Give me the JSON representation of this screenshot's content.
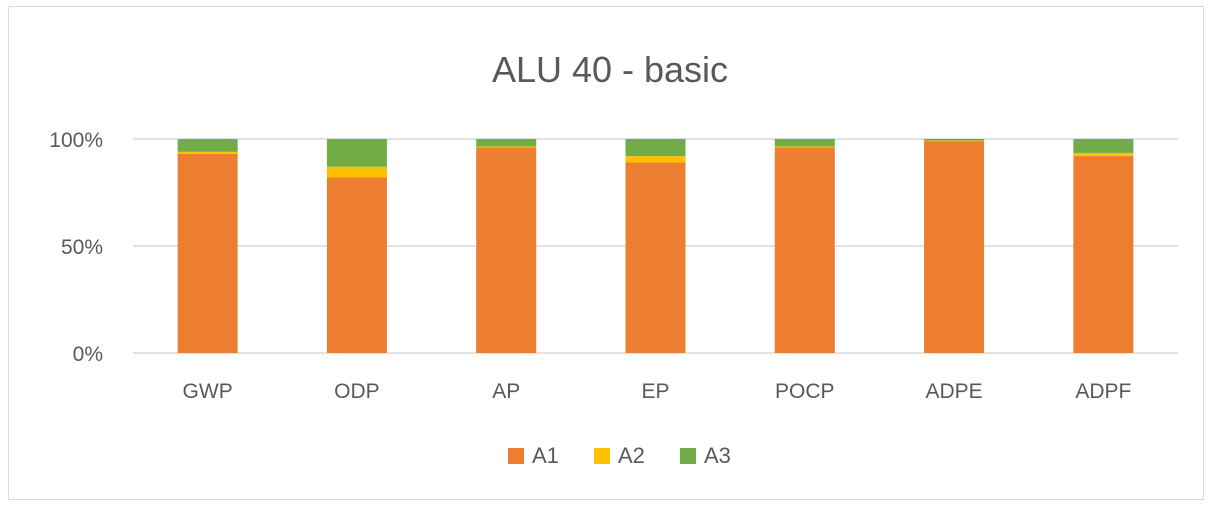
{
  "chart_data": {
    "type": "bar",
    "stacked": true,
    "title": "ALU 40 - basic",
    "categories": [
      "GWP",
      "ODP",
      "AP",
      "EP",
      "POCP",
      "ADPE",
      "ADPF"
    ],
    "series": [
      {
        "name": "A1",
        "color": "#ED7D31",
        "values": [
          93,
          82,
          96,
          89,
          96,
          99,
          92
        ]
      },
      {
        "name": "A2",
        "color": "#FFC000",
        "values": [
          1,
          5,
          0.5,
          3,
          0.5,
          0.3,
          1.5
        ]
      },
      {
        "name": "A3",
        "color": "#70AD47",
        "values": [
          6,
          13,
          3.5,
          8,
          3.5,
          0.7,
          6.5
        ]
      }
    ],
    "y_ticks": [
      "0%",
      "50%",
      "100%"
    ],
    "ylim": [
      0,
      100
    ],
    "grid": true,
    "legend_position": "bottom"
  }
}
